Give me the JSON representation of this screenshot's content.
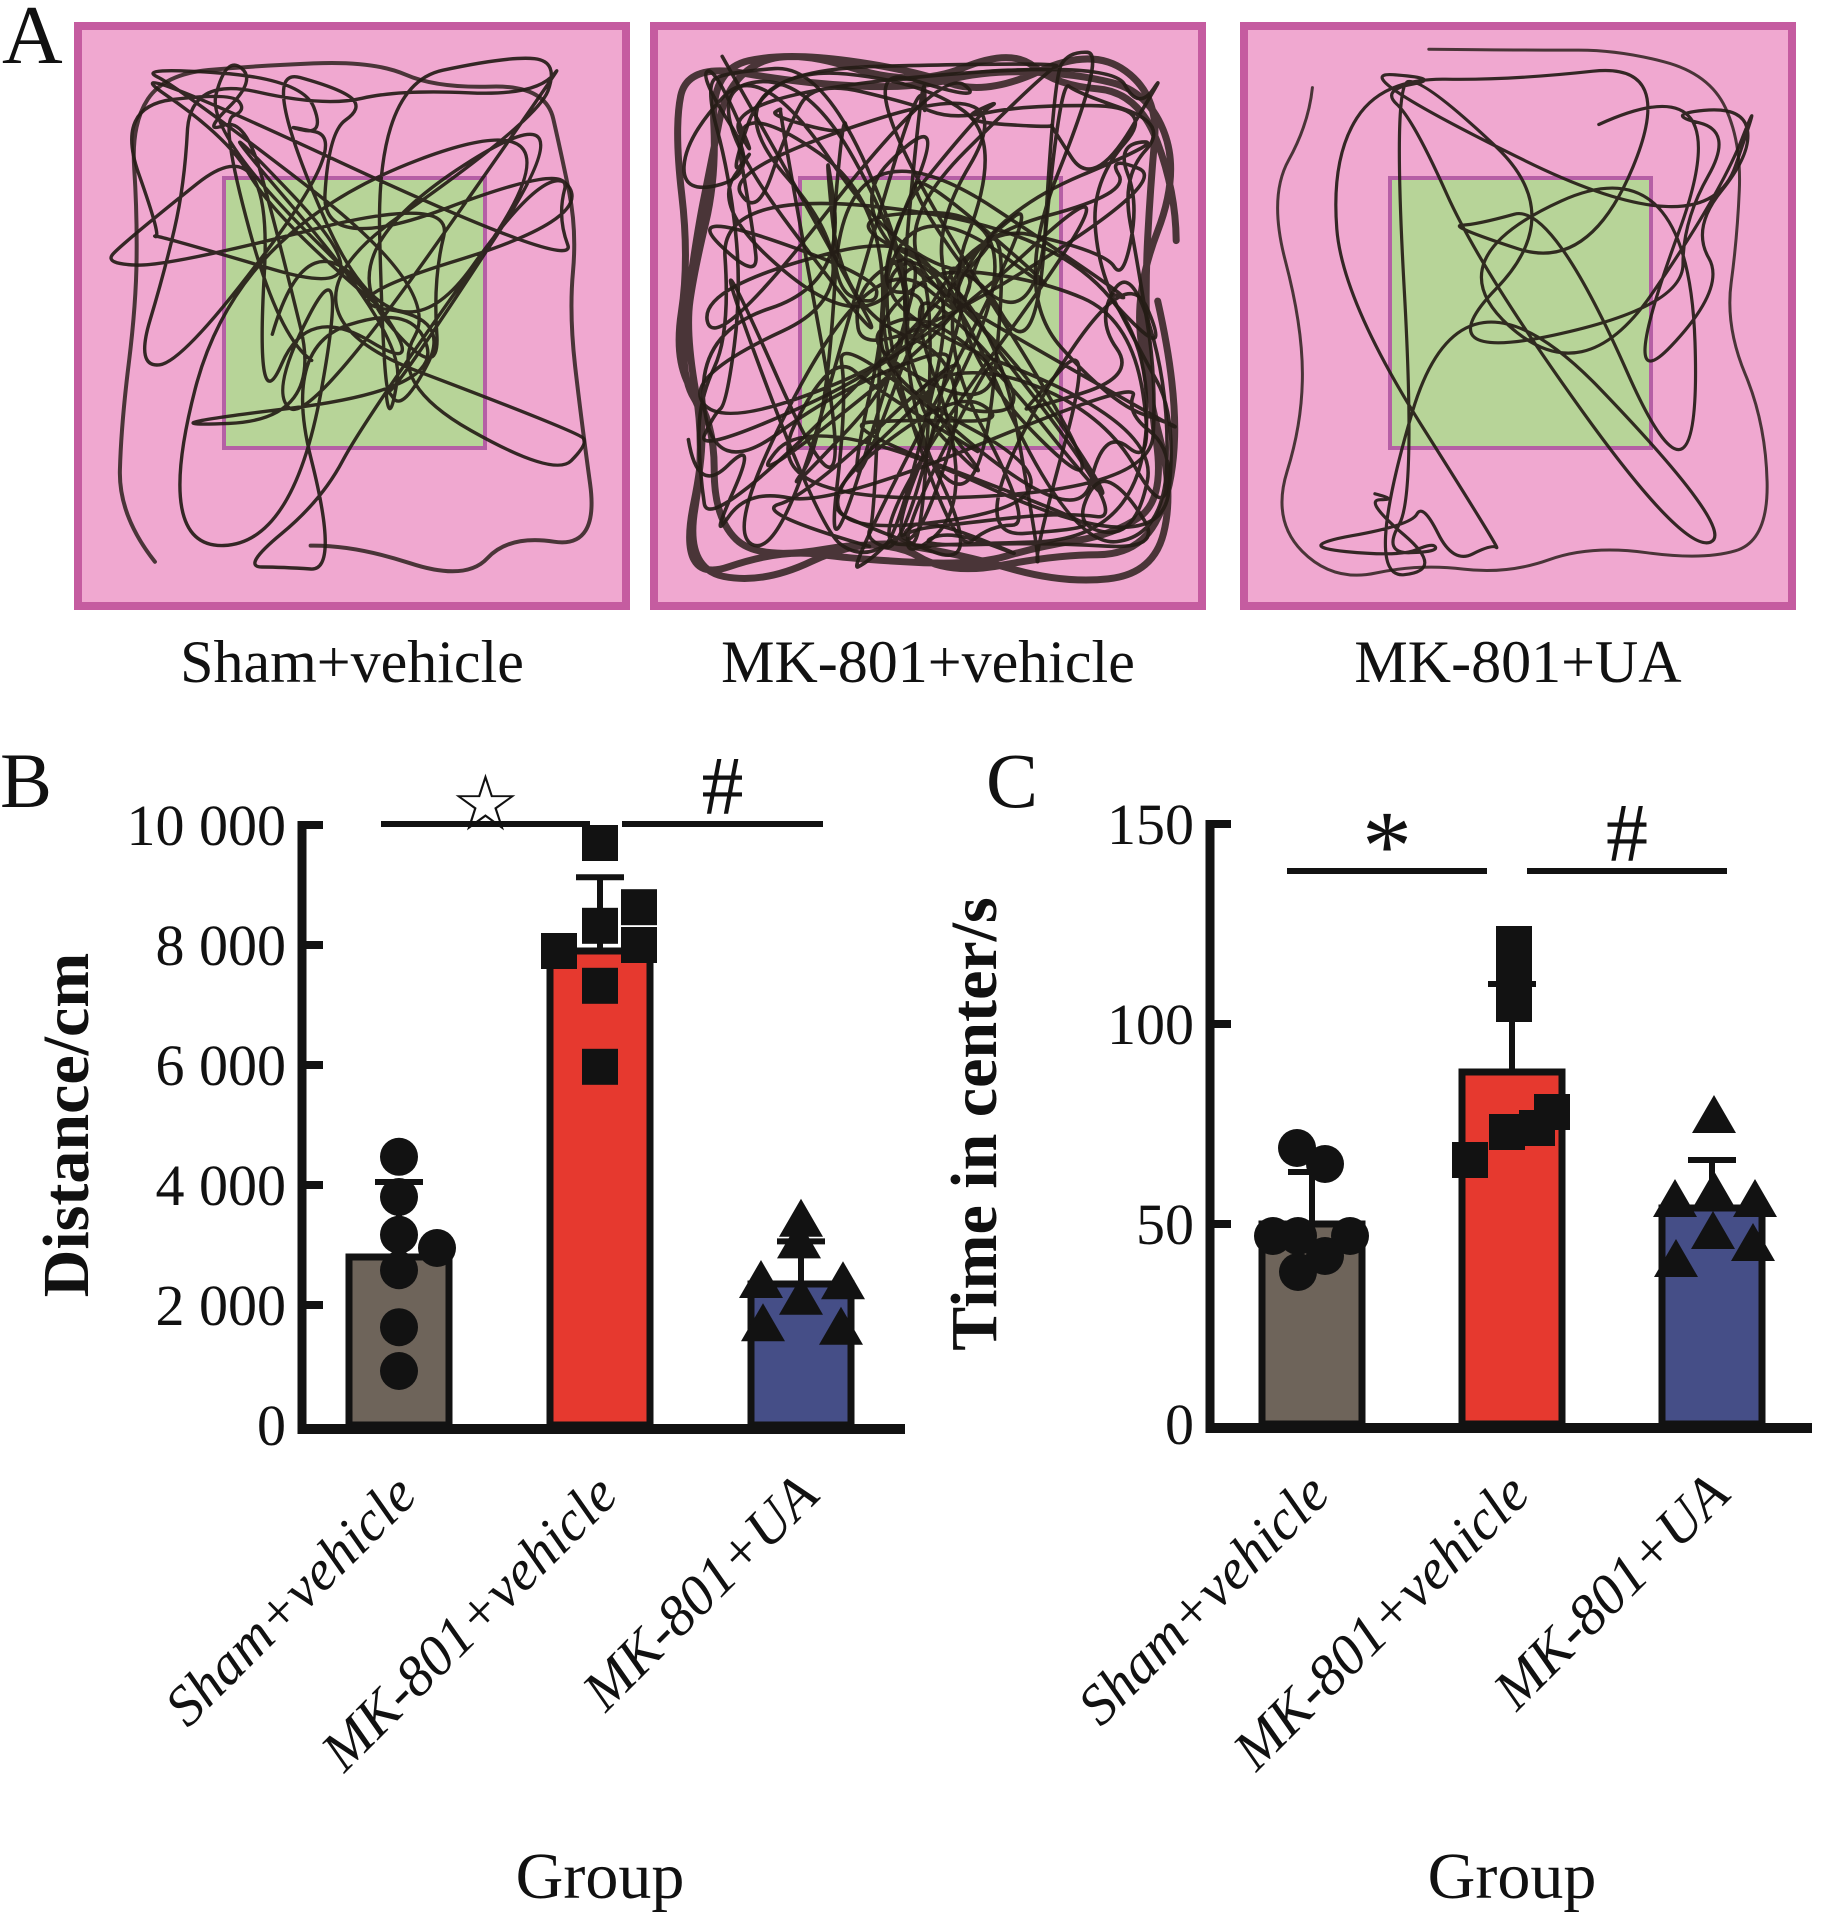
{
  "panels": {
    "a": "A",
    "b": "B",
    "c": "C"
  },
  "panelA": {
    "arenas": [
      {
        "caption": "Sham+vehicle",
        "activity": "moderate"
      },
      {
        "caption": "MK-801+vehicle",
        "activity": "high"
      },
      {
        "caption": "MK-801+UA",
        "activity": "low"
      }
    ],
    "colors": {
      "arena_fill": "#f0a8d0",
      "arena_border": "#c55ca0",
      "center_fill": "#b7d498",
      "center_border": "#b55fa5",
      "track": "#241c16"
    }
  },
  "chart_data": [
    {
      "type": "bar",
      "panel": "B",
      "title": "",
      "ylabel": "Distance/cm",
      "xlabel": "Group",
      "ylim": [
        0,
        10000
      ],
      "yticks": [
        0,
        2000,
        4000,
        6000,
        8000,
        10000
      ],
      "ytick_labels": [
        "0",
        "2 000",
        "4 000",
        "6 000",
        "8 000",
        "10 000"
      ],
      "categories": [
        "Sham+vehicle",
        "MK-801+vehicle",
        "MK-801+UA"
      ],
      "bars": [
        {
          "group": "Sham+vehicle",
          "color": "#6e645a",
          "marker": "circle",
          "mean": 2800,
          "sd_top": 4050,
          "points": [
            {
              "v": 4470,
              "dx": 0
            },
            {
              "v": 3800,
              "dx": 0
            },
            {
              "v": 3170,
              "dx": 0
            },
            {
              "v": 2950,
              "dx": 38
            },
            {
              "v": 2580,
              "dx": 0
            },
            {
              "v": 1630,
              "dx": 0
            },
            {
              "v": 900,
              "dx": 0
            }
          ]
        },
        {
          "group": "MK-801+vehicle",
          "color": "#e6392f",
          "marker": "square",
          "mean": 7900,
          "sd_top": 9130,
          "points": [
            {
              "v": 9700,
              "dx": 0
            },
            {
              "v": 8630,
              "dx": 39
            },
            {
              "v": 8320,
              "dx": 0
            },
            {
              "v": 8000,
              "dx": 39
            },
            {
              "v": 7900,
              "dx": -41
            },
            {
              "v": 7320,
              "dx": 0
            },
            {
              "v": 5970,
              "dx": 0
            }
          ]
        },
        {
          "group": "MK-801+UA",
          "color": "#454e87",
          "marker": "triangle",
          "mean": 2350,
          "sd_top": 3060,
          "points": [
            {
              "v": 3420,
              "dx": 0
            },
            {
              "v": 3060,
              "dx": -2
            },
            {
              "v": 2400,
              "dx": -40
            },
            {
              "v": 2380,
              "dx": 42
            },
            {
              "v": 2120,
              "dx": 0
            },
            {
              "v": 1680,
              "dx": -38
            },
            {
              "v": 1620,
              "dx": 40
            }
          ]
        }
      ],
      "significance": [
        {
          "between": [
            0,
            1
          ],
          "symbol": "☆"
        },
        {
          "between": [
            1,
            2
          ],
          "symbol": "#"
        }
      ]
    },
    {
      "type": "bar",
      "panel": "C",
      "title": "",
      "ylabel": "Time in center/s",
      "xlabel": "Group",
      "ylim": [
        0,
        150
      ],
      "yticks": [
        0,
        50,
        100,
        150
      ],
      "ytick_labels": [
        "0",
        "50",
        "100",
        "150"
      ],
      "categories": [
        "Sham+vehicle",
        "MK-801+vehicle",
        "MK-801+UA"
      ],
      "bars": [
        {
          "group": "Sham+vehicle",
          "color": "#6e645a",
          "marker": "circle",
          "mean": 50,
          "sd_top": 63,
          "points": [
            {
              "v": 69,
              "dx": -15
            },
            {
              "v": 65,
              "dx": 13
            },
            {
              "v": 47,
              "dx": -39
            },
            {
              "v": 47,
              "dx": -14
            },
            {
              "v": 47,
              "dx": 38
            },
            {
              "v": 42,
              "dx": 13
            },
            {
              "v": 38,
              "dx": -14
            }
          ]
        },
        {
          "group": "MK-801+vehicle",
          "color": "#e6392f",
          "marker": "square",
          "mean": 88,
          "sd_top": 110,
          "points": [
            {
              "v": 120,
              "dx": 2
            },
            {
              "v": 113,
              "dx": 2
            },
            {
              "v": 105,
              "dx": 2
            },
            {
              "v": 78,
              "dx": 40
            },
            {
              "v": 74,
              "dx": 25
            },
            {
              "v": 73,
              "dx": -5
            },
            {
              "v": 66,
              "dx": -42
            }
          ]
        },
        {
          "group": "MK-801+UA",
          "color": "#454e87",
          "marker": "triangle",
          "mean": 54,
          "sd_top": 66,
          "points": [
            {
              "v": 77,
              "dx": 2
            },
            {
              "v": 58,
              "dx": 2
            },
            {
              "v": 56,
              "dx": -37
            },
            {
              "v": 56,
              "dx": 43
            },
            {
              "v": 48,
              "dx": 1
            },
            {
              "v": 45,
              "dx": 41
            },
            {
              "v": 41,
              "dx": -36
            }
          ]
        }
      ],
      "significance": [
        {
          "between": [
            0,
            1
          ],
          "symbol": "*"
        },
        {
          "between": [
            1,
            2
          ],
          "symbol": "#"
        }
      ]
    }
  ]
}
